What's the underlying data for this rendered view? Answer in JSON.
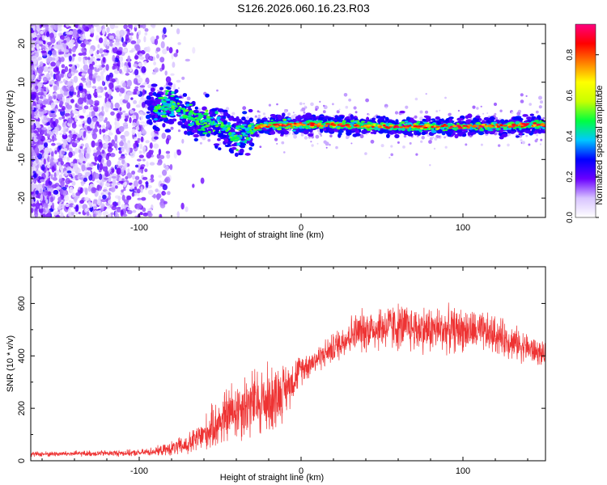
{
  "title": "S126.2026.060.16.23.R03",
  "chart_data": [
    {
      "type": "heatmap",
      "name": "spectrogram",
      "xlabel": "Height of straight line (km)",
      "ylabel": "Frequency (Hz)",
      "xlim": [
        -167,
        151
      ],
      "ylim": [
        -25,
        25
      ],
      "xticks": [
        -100,
        0,
        100
      ],
      "yticks": [
        -20,
        -10,
        0,
        10,
        20
      ],
      "xtick_labels": [
        "-100",
        "0",
        "100"
      ],
      "ytick_labels": [
        "-20",
        "-10",
        "0",
        "10",
        "20"
      ],
      "ridge": {
        "x": [
          -95,
          -80,
          -65,
          -50,
          -40,
          -30,
          -20,
          0,
          20,
          50,
          100,
          151
        ],
        "y": [
          3,
          4,
          0,
          -1,
          -4,
          -2,
          -1,
          -1,
          -1,
          -1.5,
          -1.5,
          -1
        ]
      },
      "colorbar": {
        "label": "Normalized spectral amplitude",
        "range": [
          0,
          0.95
        ],
        "ticks": [
          0.0,
          0.2,
          0.4,
          0.6,
          0.8
        ],
        "tick_labels": [
          "0.0",
          "0.2",
          "0.4",
          "0.6",
          "0.8"
        ],
        "colors": [
          "#ffffff",
          "#d8c4ff",
          "#6a00ff",
          "#0000ff",
          "#00c8ff",
          "#00ff40",
          "#c8ff00",
          "#ffff00",
          "#ff8000",
          "#ff0000",
          "#ff0080"
        ]
      }
    },
    {
      "type": "line",
      "name": "snr",
      "xlabel": "Height of straight line (km)",
      "ylabel": "SNR (10 * v/v)",
      "xlim": [
        -167,
        151
      ],
      "ylim": [
        0,
        740
      ],
      "xticks": [
        -100,
        0,
        100
      ],
      "yticks": [
        0,
        200,
        400,
        600
      ],
      "xtick_labels": [
        "-100",
        "0",
        "100"
      ],
      "ytick_labels": [
        "0",
        "200",
        "400",
        "600"
      ],
      "color": "#ee3333",
      "envelope": {
        "x": [
          -167,
          -100,
          -85,
          -70,
          -60,
          -50,
          -40,
          -30,
          -20,
          -10,
          0,
          10,
          20,
          30,
          40,
          50,
          60,
          80,
          100,
          120,
          140,
          151
        ],
        "mean": [
          25,
          30,
          40,
          60,
          100,
          150,
          200,
          220,
          230,
          270,
          350,
          390,
          430,
          480,
          500,
          510,
          510,
          500,
          500,
          480,
          430,
          400
        ],
        "spread": [
          12,
          15,
          25,
          50,
          80,
          120,
          150,
          160,
          170,
          120,
          70,
          60,
          70,
          90,
          100,
          110,
          110,
          110,
          100,
          90,
          70,
          50
        ]
      }
    }
  ]
}
